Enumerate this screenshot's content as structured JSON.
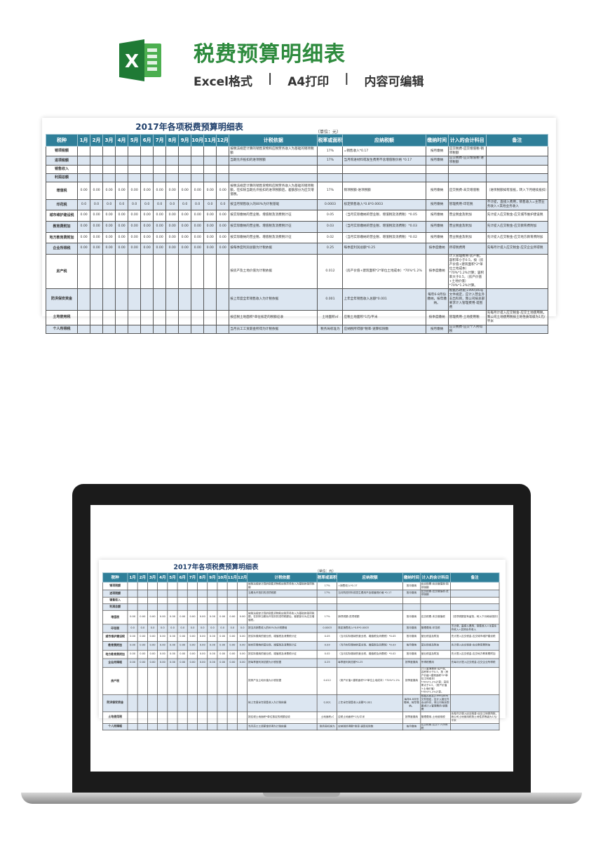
{
  "header": {
    "title": "税费预算明细表",
    "features": [
      "Excel格式",
      "|",
      "A4打印",
      "|",
      "内容可编辑"
    ],
    "logo": "excel-logo"
  },
  "sheet": {
    "title": "2017年各项税费预算明细表",
    "unit": "（单位：元）",
    "columns": [
      "税种",
      "1月",
      "2月",
      "3月",
      "4月",
      "5月",
      "6月",
      "7月",
      "8月",
      "9月",
      "10月",
      "11月",
      "12月",
      "计税依据",
      "税率或面积",
      "应纳税额",
      "缴纳时间",
      "计入的会计科目",
      "备注"
    ],
    "rows": [
      {
        "name": "销项税额",
        "months": [],
        "basis": "按税法规定计算的销售货物和应税劳务收入为基础的销项税额",
        "rate": "17%",
        "amount": "=销售收入*0.17",
        "time": "按月缴纳",
        "account": "应交税费-应交增值税-销项税额",
        "note": ""
      },
      {
        "name": "进项税额",
        "months": [],
        "basis": "当期允许抵扣的进项税额",
        "rate": "17%",
        "amount": "当月购进材料或发生费用不含增值税价格 *0.17",
        "time": "按月缴纳",
        "account": "应交税费-应交增值税-进项税额",
        "note": ""
      },
      {
        "name": "销售收入",
        "months": [],
        "basis": "",
        "rate": "",
        "amount": "",
        "time": "",
        "account": "",
        "note": ""
      },
      {
        "name": "利润总额",
        "months": [],
        "basis": "",
        "rate": "",
        "amount": "",
        "time": "",
        "account": "",
        "note": ""
      },
      {
        "name": "增值税",
        "months": [
          "0.00",
          "0.00",
          "0.00",
          "0.00",
          "0.00",
          "0.00",
          "0.00",
          "0.00",
          "0.00",
          "0.00",
          "0.00",
          "0.00"
        ],
        "basis": "按税法规定计算的销售货物和应税劳务收入为基础的销项税额，在扣除当期允许抵扣的进项税额后，差额部分为应交增值税。",
        "rate": "17%",
        "amount": "销项税额-进项税额",
        "time": "按月缴纳",
        "account": "应交税费-未交增值税",
        "note": "（进项税额如有留抵，转入下月继续抵扣）"
      },
      {
        "name": "印花税",
        "months": [
          "0.0",
          "0.0",
          "0.0",
          "0.0",
          "0.0",
          "0.0",
          "0.0",
          "0.0",
          "0.0",
          "0.0",
          "0.0",
          "0.0"
        ],
        "basis": "按当月销售收入的80%为计税基础",
        "rate": "0.0003",
        "amount": "核定销售收入*0.8*0.0003",
        "time": "按月缴纳",
        "account": "管理费用-印花税",
        "note": "不计提，直接入费用，销售收入=主营业务收入+其他业务收入"
      },
      {
        "name": "城市维护建设税",
        "months": [
          "0.00",
          "0.00",
          "0.00",
          "0.00",
          "0.00",
          "0.00",
          "0.00",
          "0.00",
          "0.00",
          "0.00",
          "0.00",
          "0.00"
        ],
        "basis": "按实际缴纳的营业税、增值税及消费税计征",
        "rate": "0.05",
        "amount": "（当月实际缴纳的营业税、增值税及消费税）*0.05",
        "time": "按月缴纳",
        "account": "营业税金及附加",
        "note": "先计提入应交税金-应交城市维护建设税"
      },
      {
        "name": "教育费附加",
        "months": [
          "0.00",
          "0.00",
          "0.00",
          "0.00",
          "0.00",
          "0.00",
          "0.00",
          "0.00",
          "0.00",
          "0.00",
          "0.00",
          "0.00"
        ],
        "basis": "按实际缴纳的营业税、增值税及消费税计征",
        "rate": "0.03",
        "amount": "（当月实际缴纳的营业税、增值税及消费税）*0.03",
        "time": "按月缴纳",
        "account": "营业税金及附加",
        "note": "先计提入应交税金-应交教育费附加"
      },
      {
        "name": "地方教育费附加",
        "months": [
          "0.00",
          "0.00",
          "0.00",
          "0.00",
          "0.00",
          "0.00",
          "0.00",
          "0.00",
          "0.00",
          "0.00",
          "0.00",
          "0.00"
        ],
        "basis": "按实际缴纳的营业税、增值税及消费税计征",
        "rate": "0.02",
        "amount": "（当月实际缴纳的营业税、增值税及消费税）*0.02",
        "time": "按月缴纳",
        "account": "营业税金及附加",
        "note": "先计提入应交税金-应交地方教育费附加"
      },
      {
        "name": "企业所得税",
        "months": [
          "0.00",
          "0.00",
          "0.00",
          "0.00",
          "0.00",
          "0.00",
          "0.00",
          "0.00",
          "0.00",
          "0.00",
          "0.00",
          "0.00"
        ],
        "basis": "按每季度利润总额为计税依据",
        "rate": "0.25",
        "amount": "每季度利润总额*0.25",
        "time": "按季度缴纳",
        "account": "所得税费用",
        "note": "先每月计提入应交税金-应交企业所得税"
      },
      {
        "name": "房产税",
        "months": [],
        "basis": "按房产及土地价值为计税依据",
        "rate": "0.012",
        "amount": "（房产价值+建筑面积*2*单位土地成本）*70%*1.2%",
        "time": "按季度缴纳",
        "account": "计入管理费用-房产税，容积率小于0.5，按（房产价值+建筑面积*2*单位土地成本）*70%*1.2%计算；容积率大于0.5，（房产价值+土地价值）*70%*1.2%计算。",
        "note": ""
      },
      {
        "name": "防洪保安资金",
        "months": [],
        "basis": "按上年度全年销售收入为计税依据",
        "rate": "0.001",
        "amount": "上年全年销售收入总额*0.001",
        "time": "每年6-8月份缴纳，按年缴纳。",
        "account": "根据苏政发[1999]46号文件规定，应计入营业外支出科目，我公司按总部要求计入管理费用-堤围费",
        "note": ""
      },
      {
        "name": "土地使用税",
        "months": [],
        "basis": "按应税土地面积*单位核定的税额征收",
        "rate": "土地面积㎡",
        "amount": "应税土地面积*1元/平米",
        "time": "按季度缴纳",
        "account": "管理费用-土地使用税",
        "note": "先每月计提入应交税金-应交土地使用税，我公司土地使用税按土地性质等级为1元/平米"
      },
      {
        "name": "个人所得税",
        "months": [],
        "basis": "当月员工工资薪金所得为计税依据",
        "rate": "税务局标准为",
        "amount": "应纳税所得额*税率-速算扣除数",
        "time": "按月缴纳",
        "account": "应交税费-应交个人所得税",
        "note": ""
      }
    ]
  },
  "colors": {
    "title": "#2e8b3e",
    "header": "#2f7f99",
    "stripe": "#dce6f1",
    "sheet_title": "#1f3f6b"
  }
}
